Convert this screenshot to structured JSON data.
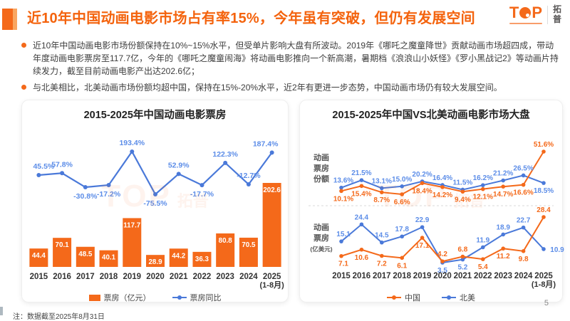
{
  "page": {
    "footnote": "注：数据截至2025年8月31日",
    "number": "5"
  },
  "header": {
    "title": "近10年中国动画电影市场占有率15%，今年虽有突破，但仍有发展空间",
    "logo": {
      "en_t": "T",
      "en_p": "P",
      "cn": "拓普"
    }
  },
  "bullets": [
    "近10年中国动画电影市场份额保持在10%~15%水平，但受单片影响大盘有所波动。2019年《哪吒之魔童降世》贡献动画市场超四成，带动年度动画电影票房至117.7亿，今年的《哪吒之魔童闹海》将动画电影推向一个新高潮，暑期档《浪浪山小妖怪》《罗小黑战记2》等动画片持续发力，截至目前动画电影产出达202.6亿；",
    "与北美相比，北美动画市场份额均超中国，保持在15%-20%水平，近2年有更进一步态势，中国动画市场仍有较大发展空间。"
  ],
  "watermark": {
    "en": "TOP",
    "cn": "拓普"
  },
  "colors": {
    "orange": "#F4691A",
    "blue": "#4A79D9",
    "blue_label": "#5C8DE8"
  },
  "chart_data": [
    {
      "type": "bar+line",
      "title": "2015-2025年中国动画电影票房",
      "categories": [
        "2015",
        "2016",
        "2017",
        "2018",
        "2019",
        "2020",
        "2021",
        "2022",
        "2023",
        "2024",
        "2025"
      ],
      "last_category_note": "(1-8月)",
      "legend_position": "bottom",
      "series": [
        {
          "name": "票房（亿元）",
          "type": "bar",
          "unit": "亿元",
          "color": "#F4691A",
          "values": [
            44.4,
            70.1,
            48.5,
            40.1,
            117.7,
            28.9,
            44.2,
            36.3,
            80.8,
            70.5,
            202.6
          ]
        },
        {
          "name": "票房同比",
          "type": "line",
          "unit": "%",
          "color": "#4A79D9",
          "label_color": "#5C8DE8",
          "values": [
            45.5,
            57.8,
            -30.8,
            -17.2,
            193.4,
            -75.5,
            52.9,
            -17.7,
            122.3,
            -12.7,
            187.4
          ],
          "label_side": [
            "above",
            "above",
            "below",
            "below",
            "above",
            "below",
            "above",
            "below",
            "above",
            "above",
            "above"
          ]
        }
      ]
    },
    {
      "type": "line",
      "title": "2015-2025年中国VS北美动画电影市场大盘",
      "categories": [
        "2015",
        "2016",
        "2017",
        "2018",
        "2019",
        "2020",
        "2021",
        "2022",
        "2023",
        "2024",
        "2025"
      ],
      "last_category_note": "(1-8月)",
      "legend": [
        "中国",
        "北美"
      ],
      "legend_position": "bottom",
      "panels": [
        {
          "ylabel": "动画票房份额",
          "ylabel_lines": [
            "动画",
            "票房",
            "份额"
          ],
          "unit": "%",
          "series": [
            {
              "name": "中国",
              "color": "#F4691A",
              "values": [
                10.1,
                15.4,
                8.7,
                6.6,
                18.4,
                14.2,
                9.4,
                12.1,
                14.7,
                16.6,
                51.6
              ],
              "label_side": [
                "below",
                "below",
                "below",
                "below",
                "below",
                "below",
                "below",
                "below",
                "below",
                "below",
                "above"
              ]
            },
            {
              "name": "北美",
              "color": "#4A79D9",
              "label_color": "#5C8DE8",
              "values": [
                13.6,
                21.5,
                13.1,
                15.0,
                20.2,
                16.4,
                11.5,
                16.2,
                21.2,
                26.5,
                18.5
              ],
              "label_side": [
                "above",
                "above",
                "above",
                "above",
                "above",
                "above",
                "above",
                "above",
                "above",
                "above",
                "below"
              ]
            }
          ]
        },
        {
          "ylabel": "动画票房(亿美元)",
          "ylabel_lines": [
            "动画",
            "票房",
            "(亿美元)"
          ],
          "unit": "",
          "series": [
            {
              "name": "中国",
              "color": "#F4691A",
              "values": [
                7.1,
                10.6,
                7.2,
                6.1,
                17.1,
                4.2,
                6.8,
                5.4,
                11.2,
                9.8,
                28.4
              ],
              "label_side": [
                "below",
                "below",
                "below",
                "below",
                "below",
                "above",
                "above",
                "below",
                "below",
                "below",
                "above"
              ]
            },
            {
              "name": "北美",
              "color": "#4A79D9",
              "label_color": "#5C8DE8",
              "values": [
                15.1,
                24.4,
                14.5,
                17.8,
                22.9,
                3.5,
                5.2,
                11.9,
                18.9,
                22.7,
                10.9
              ],
              "label_side": [
                "above",
                "above",
                "above",
                "above",
                "above",
                "below",
                "below",
                "above",
                "above",
                "above",
                "right"
              ]
            }
          ]
        }
      ]
    }
  ]
}
